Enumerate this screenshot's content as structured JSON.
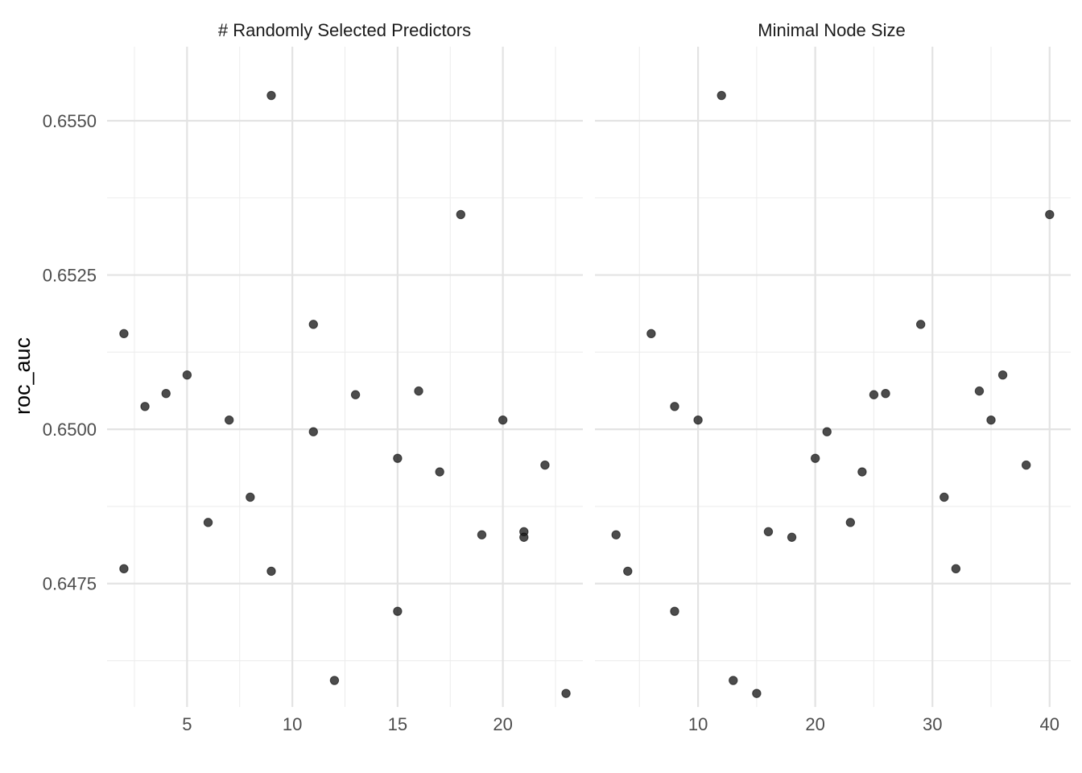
{
  "chart_data": {
    "type": "scatter",
    "ylabel": "roc_auc",
    "ylim": [
      0.6455,
      0.6562
    ],
    "y_ticks": [
      0.6475,
      0.65,
      0.6525,
      0.655
    ],
    "y_tick_labels": [
      "0.6475",
      "0.6500",
      "0.6525",
      "0.6550"
    ],
    "y_minor": [
      0.64625,
      0.64875,
      0.65125,
      0.65375
    ],
    "grid": true,
    "panels": [
      {
        "title": "# Randomly Selected Predictors",
        "xlim": [
          1.2,
          23.8
        ],
        "x_ticks": [
          5,
          10,
          15,
          20
        ],
        "x_tick_labels": [
          "5",
          "10",
          "15",
          "20"
        ],
        "x_minor": [
          2.5,
          7.5,
          12.5,
          17.5,
          22.5
        ],
        "points": [
          {
            "x": 9,
            "y": 0.65541
          },
          {
            "x": 18,
            "y": 0.65348
          },
          {
            "x": 2,
            "y": 0.65155
          },
          {
            "x": 11,
            "y": 0.6517
          },
          {
            "x": 5,
            "y": 0.65088
          },
          {
            "x": 4,
            "y": 0.65058
          },
          {
            "x": 3,
            "y": 0.65037
          },
          {
            "x": 13,
            "y": 0.65056
          },
          {
            "x": 16,
            "y": 0.65062
          },
          {
            "x": 7,
            "y": 0.65015
          },
          {
            "x": 20,
            "y": 0.65015
          },
          {
            "x": 11,
            "y": 0.64996
          },
          {
            "x": 15,
            "y": 0.64953
          },
          {
            "x": 17,
            "y": 0.64931
          },
          {
            "x": 22,
            "y": 0.64942
          },
          {
            "x": 8,
            "y": 0.6489
          },
          {
            "x": 6,
            "y": 0.64849
          },
          {
            "x": 19,
            "y": 0.64829
          },
          {
            "x": 21,
            "y": 0.64834
          },
          {
            "x": 21,
            "y": 0.64825
          },
          {
            "x": 2,
            "y": 0.64774
          },
          {
            "x": 9,
            "y": 0.6477
          },
          {
            "x": 15,
            "y": 0.64705
          },
          {
            "x": 12,
            "y": 0.64593
          },
          {
            "x": 23,
            "y": 0.64572
          }
        ]
      },
      {
        "title": "Minimal Node Size",
        "xlim": [
          1.2,
          41.8
        ],
        "x_ticks": [
          10,
          20,
          30,
          40
        ],
        "x_tick_labels": [
          "10",
          "20",
          "30",
          "40"
        ],
        "x_minor": [
          5,
          15,
          25,
          35
        ],
        "points": [
          {
            "x": 12,
            "y": 0.65541
          },
          {
            "x": 40,
            "y": 0.65348
          },
          {
            "x": 6,
            "y": 0.65155
          },
          {
            "x": 29,
            "y": 0.6517
          },
          {
            "x": 36,
            "y": 0.65088
          },
          {
            "x": 26,
            "y": 0.65058
          },
          {
            "x": 8,
            "y": 0.65037
          },
          {
            "x": 25,
            "y": 0.65056
          },
          {
            "x": 34,
            "y": 0.65062
          },
          {
            "x": 10,
            "y": 0.65015
          },
          {
            "x": 35,
            "y": 0.65015
          },
          {
            "x": 21,
            "y": 0.64996
          },
          {
            "x": 20,
            "y": 0.64953
          },
          {
            "x": 24,
            "y": 0.64931
          },
          {
            "x": 38,
            "y": 0.64942
          },
          {
            "x": 31,
            "y": 0.6489
          },
          {
            "x": 23,
            "y": 0.64849
          },
          {
            "x": 3,
            "y": 0.64829
          },
          {
            "x": 16,
            "y": 0.64834
          },
          {
            "x": 18,
            "y": 0.64825
          },
          {
            "x": 32,
            "y": 0.64774
          },
          {
            "x": 4,
            "y": 0.6477
          },
          {
            "x": 8,
            "y": 0.64705
          },
          {
            "x": 13,
            "y": 0.64593
          },
          {
            "x": 15,
            "y": 0.64572
          }
        ]
      }
    ]
  }
}
